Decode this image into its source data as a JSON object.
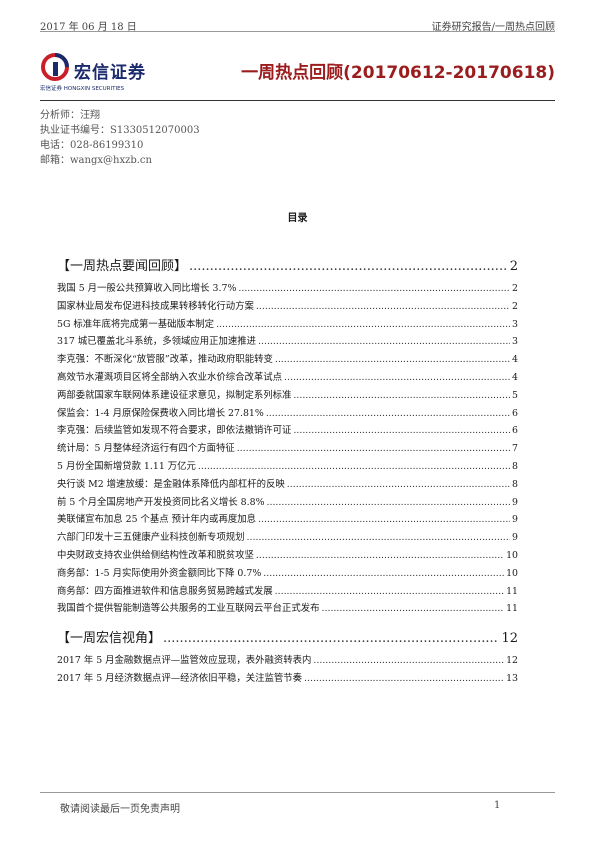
{
  "header": {
    "date": "2017 年 06 月 18 日",
    "category": "证券研究报告/一周热点回顾",
    "logo_cn": "宏信证券",
    "logo_en": "宏信证券 HONGXIN SECURITIES",
    "title": "一周热点回顾(20170612-20170618)"
  },
  "author": {
    "analyst": "分析师：汪翔",
    "license": "执业证书编号：S1330512070003",
    "phone": "电话：028-86199310",
    "email": "邮箱：wangx@hxzb.cn"
  },
  "toc": {
    "heading": "目录",
    "sections": [
      {
        "label": "【一周热点要闻回顾】",
        "page": "2",
        "entries": [
          {
            "label": "我国 5 月一般公共预算收入同比增长 3.7%",
            "page": "2"
          },
          {
            "label": "国家林业局发布促进科技成果转移转化行动方案",
            "page": "2"
          },
          {
            "label": "5G 标准年底将完成第一基础版本制定",
            "page": "3"
          },
          {
            "label": "317 城已覆盖北斗系统，多领域应用正加速推进",
            "page": "3"
          },
          {
            "label": "李克强：不断深化“放管服”改革，推动政府职能转变",
            "page": "4"
          },
          {
            "label": "高效节水灌溉项目区将全部纳入农业水价综合改革试点",
            "page": "4"
          },
          {
            "label": "两部委就国家车联网体系建设征求意见，拟制定系列标准",
            "page": "5"
          },
          {
            "label": "保监会：1-4 月原保险保费收入同比增长 27.81%",
            "page": "6"
          },
          {
            "label": "李克强：后续监管如发现不符合要求，即依法撤销许可证",
            "page": "6"
          },
          {
            "label": "统计局：5 月整体经济运行有四个方面特征",
            "page": "7"
          },
          {
            "label": "5 月份全国新增贷款 1.11 万亿元",
            "page": "8"
          },
          {
            "label": "央行谈 M2 增速放缓：是金融体系降低内部杠杆的反映",
            "page": "8"
          },
          {
            "label": "前 5 个月全国房地产开发投资同比名义增长 8.8%",
            "page": "9"
          },
          {
            "label": "美联储宣布加息 25 个基点 预计年内或再度加息",
            "page": "9"
          },
          {
            "label": "六部门印发十三五健康产业科技创新专项规划",
            "page": "9"
          },
          {
            "label": "中央财政支持农业供给侧结构性改革和脱贫攻坚",
            "page": "10"
          },
          {
            "label": "商务部：1-5 月实际使用外资金额同比下降 0.7%",
            "page": "10"
          },
          {
            "label": "商务部：四方面推进软件和信息服务贸易跨越式发展",
            "page": "11"
          },
          {
            "label": "我国首个提供智能制造等公共服务的工业互联网云平台正式发布",
            "page": "11"
          }
        ]
      },
      {
        "label": "【一周宏信视角】",
        "page": "12",
        "entries": [
          {
            "label": "2017 年 5 月金融数据点评—监管效应显现，表外融资转表内",
            "page": "12"
          },
          {
            "label": "2017 年 5 月经济数据点评—经济依旧平稳，关注监管节奏",
            "page": "13"
          }
        ]
      }
    ]
  },
  "footer": {
    "disclaimer": "敬请阅读最后一页免责声明",
    "page_number": "1"
  },
  "colors": {
    "title": "#9b1c1c",
    "logo": "#1a2a6c",
    "logo_accent": "#c8202a"
  }
}
